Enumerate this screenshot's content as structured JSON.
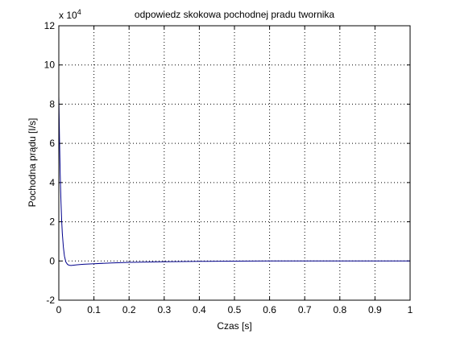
{
  "chart_data": {
    "type": "line",
    "title": "odpowiedz skokowa pochodnej pradu twornika",
    "xlabel": "Czas [s]",
    "ylabel": "Pochodna prądu [I/s]",
    "y_exponent_label": "x 10",
    "y_exponent_power": "4",
    "xlim": [
      0,
      1
    ],
    "ylim": [
      -2,
      12
    ],
    "x_ticks": [
      0,
      0.1,
      0.2,
      0.3,
      0.4,
      0.5,
      0.6,
      0.7,
      0.8,
      0.9,
      1
    ],
    "x_tick_labels": [
      "0",
      "0.1",
      "0.2",
      "0.3",
      "0.4",
      "0.5",
      "0.6",
      "0.7",
      "0.8",
      "0.9",
      "1"
    ],
    "y_ticks": [
      -2,
      0,
      2,
      4,
      6,
      8,
      10,
      12
    ],
    "y_tick_labels": [
      "-2",
      "0",
      "2",
      "4",
      "6",
      "8",
      "10",
      "12"
    ],
    "grid": true,
    "line_color": "#00008b",
    "series": [
      {
        "x": [
          0,
          0.002,
          0.004,
          0.006,
          0.008,
          0.01,
          0.013,
          0.016,
          0.02,
          0.025,
          0.03,
          0.035,
          0.04,
          0.05,
          0.07,
          0.1,
          0.15,
          0.2,
          0.3,
          0.4,
          0.5,
          0.6,
          0.8,
          1.0
        ],
        "y": [
          8.4,
          6.2,
          4.4,
          3.1,
          2.1,
          1.4,
          0.7,
          0.25,
          -0.05,
          -0.18,
          -0.22,
          -0.23,
          -0.22,
          -0.2,
          -0.17,
          -0.14,
          -0.1,
          -0.07,
          -0.04,
          -0.02,
          -0.01,
          0,
          0,
          0
        ]
      }
    ]
  }
}
